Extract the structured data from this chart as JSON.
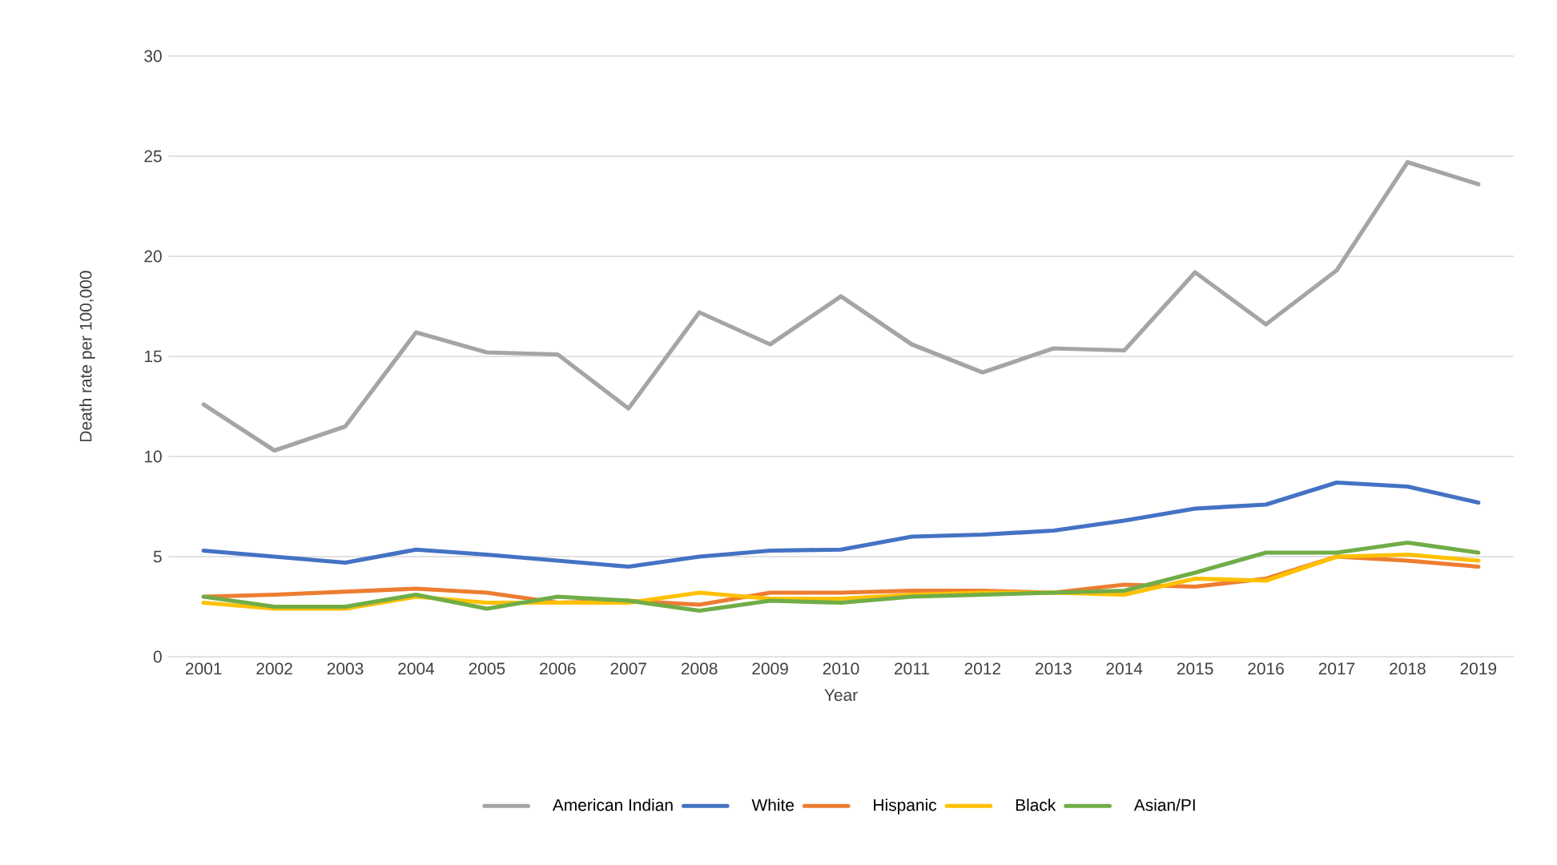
{
  "chart_data": {
    "type": "line",
    "xlabel": "Year",
    "ylabel": "Death rate per 100,000",
    "categories": [
      "2001",
      "2002",
      "2003",
      "2004",
      "2005",
      "2006",
      "2007",
      "2008",
      "2009",
      "2010",
      "2011",
      "2012",
      "2013",
      "2014",
      "2015",
      "2016",
      "2017",
      "2018",
      "2019"
    ],
    "series": [
      {
        "name": "American Indian",
        "color": "#a5a5a5",
        "values": [
          12.6,
          10.3,
          11.5,
          16.2,
          15.2,
          15.1,
          12.4,
          17.2,
          15.6,
          18.0,
          15.6,
          14.2,
          15.4,
          15.3,
          19.2,
          16.6,
          19.3,
          24.7,
          23.6
        ]
      },
      {
        "name": "White",
        "color": "#4472c4",
        "values": [
          5.3,
          5.0,
          4.7,
          5.35,
          5.1,
          4.8,
          4.5,
          5.0,
          5.3,
          5.35,
          6.0,
          6.1,
          6.3,
          6.8,
          7.4,
          7.6,
          8.7,
          8.5,
          7.7
        ]
      },
      {
        "name": "Hispanic",
        "color": "#ed7d31",
        "values": [
          3.0,
          3.1,
          3.25,
          3.4,
          3.2,
          2.7,
          2.8,
          2.6,
          3.2,
          3.2,
          3.3,
          3.3,
          3.2,
          3.6,
          3.5,
          3.9,
          5.0,
          4.8,
          4.5
        ]
      },
      {
        "name": "Black",
        "color": "#ffc000",
        "values": [
          2.7,
          2.4,
          2.4,
          3.0,
          2.7,
          2.7,
          2.7,
          3.2,
          2.9,
          2.9,
          3.1,
          3.2,
          3.2,
          3.1,
          3.9,
          3.8,
          5.0,
          5.1,
          4.8
        ]
      },
      {
        "name": "Asian/PI",
        "color": "#70ad47",
        "values": [
          3.0,
          2.5,
          2.5,
          3.1,
          2.4,
          3.0,
          2.8,
          2.3,
          2.8,
          2.7,
          3.0,
          3.1,
          3.2,
          3.3,
          4.2,
          5.2,
          5.2,
          5.7,
          5.2
        ]
      }
    ],
    "ylim": [
      0,
      30
    ],
    "yticks": [
      0,
      5,
      10,
      15,
      20,
      25,
      30
    ],
    "grid": "y",
    "legend": "bottom",
    "marker": "none",
    "line_style": "solid"
  }
}
